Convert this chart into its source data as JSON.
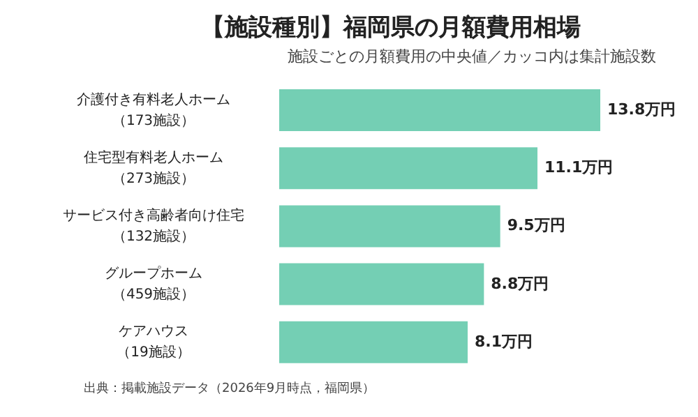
{
  "chart_data": {
    "type": "bar",
    "orientation": "horizontal",
    "title": "【施設種別】福岡県の月額費用相場",
    "subtitle": "施設ごとの月額費用の中央値／カッコ内は集計施設数",
    "categories": [
      "介護付き有料老人ホーム（173施設）",
      "住宅型有料老人ホーム（273施設）",
      "サービス付き高齢者向け住宅（132施設）",
      "グループホーム（459施設）",
      "ケアハウス（19施設）"
    ],
    "values": [
      13.8,
      11.1,
      9.5,
      8.8,
      8.1
    ],
    "value_labels": [
      "13.8万円",
      "11.1万円",
      "9.5万円",
      "8.8万円",
      "8.1万円"
    ],
    "color": "#74cfb4",
    "annotations": [
      "出典：掲載施設データ（2026年9月時点，福岡県）"
    ]
  }
}
